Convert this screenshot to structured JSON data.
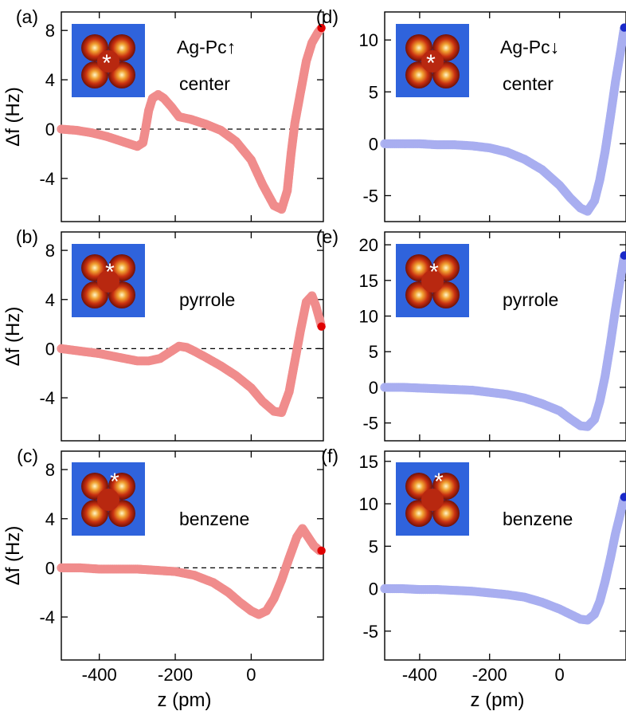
{
  "chart_data": [
    {
      "panel": "(a)",
      "type": "scatter",
      "molecule": "Ag-Pc↑",
      "site": "center",
      "ylabel": "Δf (Hz)",
      "xlabel": "",
      "xlim": [
        -500,
        190
      ],
      "ylim": [
        -7.5,
        9.5
      ],
      "yticks": [
        8,
        4,
        0,
        -4
      ],
      "ytick_labels": [
        "8",
        "4",
        "0",
        "-4"
      ],
      "xticks": [
        -400,
        -200,
        0
      ],
      "xtick_labels": [
        "",
        "",
        ""
      ],
      "zero_line": true,
      "color": "#f08c8c",
      "endpoint_color": "#e00000",
      "x": [
        -500,
        -460,
        -420,
        -380,
        -340,
        -300,
        -285,
        -280,
        -270,
        -260,
        -245,
        -230,
        -210,
        -190,
        -160,
        -120,
        -80,
        -40,
        0,
        30,
        60,
        80,
        95,
        105,
        115,
        130,
        145,
        160,
        175,
        185
      ],
      "y": [
        0,
        -0.1,
        -0.3,
        -0.6,
        -1.0,
        -1.4,
        -1.1,
        -0.3,
        1.5,
        2.5,
        2.8,
        2.5,
        1.8,
        1.0,
        0.8,
        0.4,
        -0.1,
        -1.0,
        -2.5,
        -4.5,
        -6.2,
        -6.5,
        -5.0,
        -2.0,
        0.5,
        3.0,
        5.5,
        7.0,
        7.8,
        8.2
      ]
    },
    {
      "panel": "(b)",
      "type": "scatter",
      "molecule": "",
      "site": "pyrrole",
      "ylabel": "Δf (Hz)",
      "xlabel": "",
      "xlim": [
        -500,
        190
      ],
      "ylim": [
        -7.5,
        9.5
      ],
      "yticks": [
        8,
        4,
        0,
        -4
      ],
      "ytick_labels": [
        "8",
        "4",
        "0",
        "-4"
      ],
      "xticks": [
        -400,
        -200,
        0
      ],
      "xtick_labels": [
        "",
        "",
        ""
      ],
      "zero_line": true,
      "color": "#f08c8c",
      "endpoint_color": "#e00000",
      "x": [
        -500,
        -450,
        -400,
        -350,
        -300,
        -270,
        -240,
        -210,
        -190,
        -170,
        -150,
        -120,
        -80,
        -40,
        0,
        30,
        60,
        80,
        100,
        115,
        130,
        145,
        160,
        170,
        180,
        185
      ],
      "y": [
        0,
        -0.2,
        -0.4,
        -0.7,
        -1.0,
        -1.0,
        -0.8,
        -0.2,
        0.2,
        0.1,
        -0.2,
        -0.7,
        -1.4,
        -2.2,
        -3.2,
        -4.3,
        -5.1,
        -5.2,
        -3.5,
        -1.0,
        1.5,
        3.8,
        4.3,
        3.5,
        2.4,
        1.8
      ]
    },
    {
      "panel": "(c)",
      "type": "scatter",
      "molecule": "",
      "site": "benzene",
      "ylabel": "Δf (Hz)",
      "xlabel": "z (pm)",
      "xlim": [
        -500,
        190
      ],
      "ylim": [
        -7.5,
        9.5
      ],
      "yticks": [
        8,
        4,
        0,
        -4
      ],
      "ytick_labels": [
        "8",
        "4",
        "0",
        "-4"
      ],
      "xticks": [
        -400,
        -200,
        0
      ],
      "xtick_labels": [
        "-400",
        "-200",
        "0"
      ],
      "zero_line": true,
      "color": "#f08c8c",
      "endpoint_color": "#e00000",
      "x": [
        -500,
        -450,
        -400,
        -350,
        -300,
        -250,
        -200,
        -150,
        -100,
        -60,
        -30,
        0,
        20,
        40,
        60,
        80,
        100,
        120,
        135,
        150,
        165,
        180,
        185
      ],
      "y": [
        0,
        0,
        -0.1,
        -0.1,
        -0.1,
        -0.2,
        -0.3,
        -0.6,
        -1.2,
        -2.0,
        -2.8,
        -3.5,
        -3.8,
        -3.5,
        -2.5,
        -1.0,
        0.8,
        2.5,
        3.2,
        2.5,
        1.8,
        1.4,
        1.4
      ]
    },
    {
      "panel": "(d)",
      "type": "scatter",
      "molecule": "Ag-Pc↓",
      "site": "center",
      "ylabel": "",
      "xlabel": "",
      "xlim": [
        -500,
        190
      ],
      "ylim": [
        -7.5,
        12.7
      ],
      "yticks": [
        10,
        5,
        0,
        -5
      ],
      "ytick_labels": [
        "10",
        "5",
        "0",
        "-5"
      ],
      "xticks": [
        -400,
        -200,
        0
      ],
      "xtick_labels": [
        "",
        "",
        ""
      ],
      "zero_line": false,
      "color": "#a8aef0",
      "endpoint_color": "#1a2ac8",
      "x": [
        -500,
        -450,
        -400,
        -350,
        -300,
        -250,
        -200,
        -150,
        -100,
        -50,
        0,
        30,
        60,
        80,
        100,
        115,
        130,
        145,
        160,
        175,
        185
      ],
      "y": [
        0,
        0,
        0,
        -0.1,
        -0.1,
        -0.2,
        -0.4,
        -0.8,
        -1.5,
        -2.5,
        -4.0,
        -5.2,
        -6.2,
        -6.5,
        -5.5,
        -3.5,
        -0.8,
        2.5,
        6.0,
        9.0,
        11.2
      ]
    },
    {
      "panel": "(e)",
      "type": "scatter",
      "molecule": "",
      "site": "pyrrole",
      "ylabel": "",
      "xlabel": "",
      "xlim": [
        -500,
        190
      ],
      "ylim": [
        -7.5,
        21.8
      ],
      "yticks": [
        20,
        15,
        10,
        5,
        0,
        -5
      ],
      "ytick_labels": [
        "20",
        "15",
        "10",
        "5",
        "0",
        "-5"
      ],
      "xticks": [
        -400,
        -200,
        0
      ],
      "xtick_labels": [
        "",
        "",
        ""
      ],
      "zero_line": false,
      "color": "#a8aef0",
      "endpoint_color": "#1a2ac8",
      "x": [
        -500,
        -450,
        -400,
        -350,
        -300,
        -250,
        -200,
        -150,
        -100,
        -50,
        0,
        30,
        60,
        80,
        100,
        115,
        130,
        145,
        160,
        175,
        185
      ],
      "y": [
        0,
        0,
        -0.1,
        -0.2,
        -0.3,
        -0.4,
        -0.7,
        -1.0,
        -1.5,
        -2.3,
        -3.3,
        -4.4,
        -5.4,
        -5.5,
        -4.5,
        -2.0,
        1.5,
        6.0,
        11.0,
        15.5,
        18.5
      ]
    },
    {
      "panel": "(f)",
      "type": "scatter",
      "molecule": "",
      "site": "benzene",
      "ylabel": "",
      "xlabel": "z (pm)",
      "xlim": [
        -500,
        190
      ],
      "ylim": [
        -8.4,
        16.2
      ],
      "yticks": [
        15,
        10,
        5,
        0,
        -5
      ],
      "ytick_labels": [
        "15",
        "10",
        "5",
        "0",
        "-5"
      ],
      "xticks": [
        -400,
        -200,
        0
      ],
      "xtick_labels": [
        "-400",
        "-200",
        "0"
      ],
      "zero_line": false,
      "color": "#a8aef0",
      "endpoint_color": "#1a2ac8",
      "x": [
        -500,
        -450,
        -400,
        -350,
        -300,
        -250,
        -200,
        -150,
        -100,
        -50,
        0,
        30,
        60,
        80,
        100,
        115,
        130,
        145,
        160,
        175,
        185
      ],
      "y": [
        0,
        0,
        -0.1,
        -0.1,
        -0.2,
        -0.3,
        -0.5,
        -0.7,
        -1.0,
        -1.6,
        -2.4,
        -3.0,
        -3.6,
        -3.7,
        -3.0,
        -1.5,
        0.8,
        3.5,
        6.5,
        9.0,
        10.8
      ]
    }
  ]
}
